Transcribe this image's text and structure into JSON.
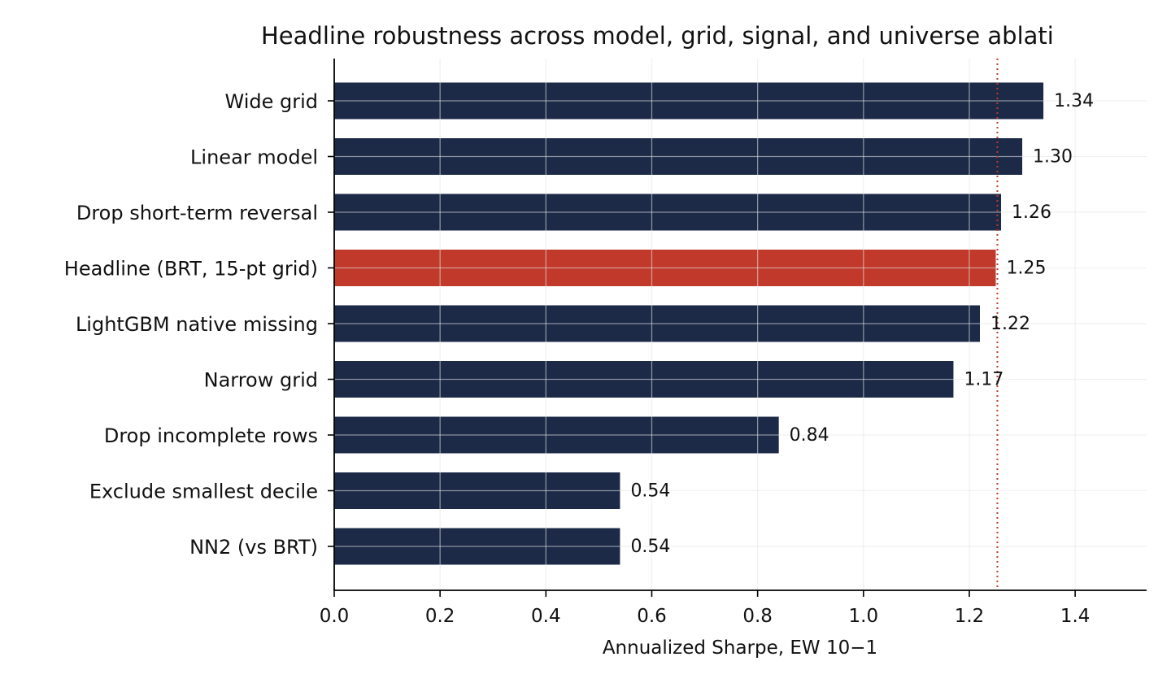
{
  "chart_data": {
    "type": "bar",
    "orientation": "horizontal",
    "title": "Headline robustness across model, grid, signal, and universe ablati",
    "xlabel": "Annualized Sharpe, EW 10−1",
    "ylabel": "",
    "xlim": [
      0,
      1.535
    ],
    "x_ticks": [
      "0.0",
      "0.2",
      "0.4",
      "0.6",
      "0.8",
      "1.0",
      "1.2",
      "1.4"
    ],
    "grid": true,
    "categories": [
      "Wide grid",
      "Linear model",
      "Drop short-term reversal",
      "Headline (BRT, 15-pt grid)",
      "LightGBM native missing",
      "Narrow grid",
      "Drop incomplete rows",
      "Exclude smallest decile",
      "NN2 (vs BRT)"
    ],
    "values": [
      1.34,
      1.3,
      1.26,
      1.25,
      1.22,
      1.17,
      0.84,
      0.54,
      0.54
    ],
    "value_labels": [
      "1.34",
      "1.30",
      "1.26",
      "1.25",
      "1.22",
      "1.17",
      "0.84",
      "0.54",
      "0.54"
    ],
    "highlight_category": "Headline (BRT, 15-pt grid)",
    "reference_line": {
      "value": 1.253,
      "style": "dotted"
    },
    "colors": {
      "bar": "#1c2a48",
      "highlight": "#c0392b",
      "reference_line": "#c0392b",
      "grid": "#e6e6e6"
    }
  }
}
